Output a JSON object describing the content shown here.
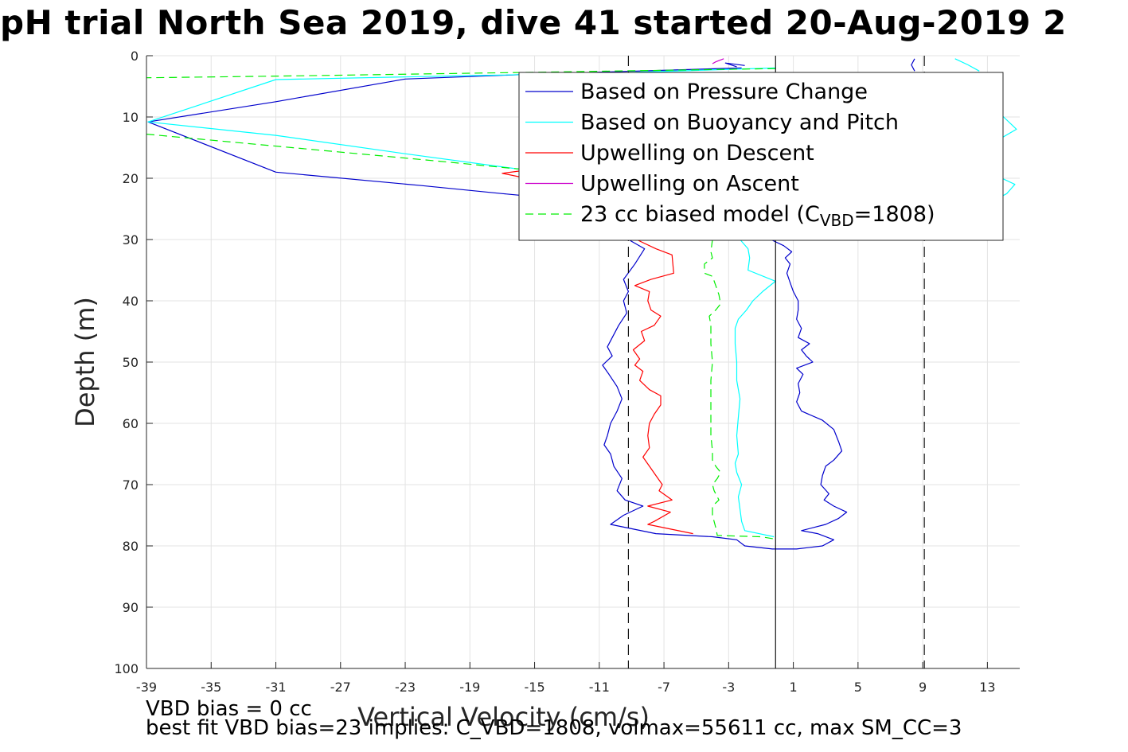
{
  "chart_data": {
    "type": "line",
    "title": "pH trial North Sea 2019, dive 41 started 20-Aug-2019 2",
    "xlabel": "Vertical Velocity (cm/s)",
    "ylabel": "Depth (m)",
    "xlim": [
      -39,
      15
    ],
    "ylim": [
      0,
      100
    ],
    "y_reversed": true,
    "grid": true,
    "legend_position": "top-right",
    "x_ticks": [
      "-39",
      "-35",
      "-31",
      "-27",
      "-23",
      "-19",
      "-15",
      "-11",
      "-7",
      "-3",
      "1",
      "5",
      "9",
      "13"
    ],
    "y_ticks": [
      "0",
      "10",
      "20",
      "30",
      "40",
      "50",
      "60",
      "70",
      "80",
      "90",
      "100"
    ],
    "reference_lines": [
      {
        "x": -9.2,
        "style": "dashed"
      },
      {
        "x": -0.1,
        "style": "solid"
      },
      {
        "x": 9.1,
        "style": "dashed"
      }
    ],
    "series": [
      {
        "name": "Based on Pressure Change",
        "color": "#0000cc",
        "segments": [
          [
            [
              -2.5,
              1.8
            ],
            [
              -3.2,
              1.2
            ],
            [
              -2.0,
              1.6
            ]
          ],
          [
            [
              -2.2,
              2.0
            ],
            [
              -15.0,
              3.0
            ],
            [
              -23.0,
              3.8
            ],
            [
              -31.0,
              7.5
            ],
            [
              -38.9,
              10.8
            ],
            [
              -31.0,
              19.0
            ],
            [
              -22.0,
              21.2
            ],
            [
              -17.0,
              22.5
            ],
            [
              -15.0,
              23.0
            ]
          ],
          [
            [
              -9.2,
              30.0
            ],
            [
              -8.2,
              31.5
            ],
            [
              -8.8,
              34.0
            ],
            [
              -9.5,
              36.5
            ],
            [
              -9.2,
              38.5
            ],
            [
              -9.5,
              40.0
            ],
            [
              -9.3,
              42.0
            ],
            [
              -9.8,
              44.0
            ],
            [
              -10.2,
              46.0
            ],
            [
              -10.5,
              47.5
            ],
            [
              -10.2,
              49.0
            ],
            [
              -10.8,
              50.5
            ],
            [
              -10.4,
              52.0
            ],
            [
              -9.9,
              54.0
            ],
            [
              -9.6,
              56.0
            ],
            [
              -9.9,
              58.0
            ],
            [
              -10.3,
              60.0
            ],
            [
              -10.5,
              62.0
            ],
            [
              -10.7,
              63.5
            ],
            [
              -10.3,
              65.0
            ],
            [
              -10.1,
              67.0
            ],
            [
              -9.6,
              69.0
            ],
            [
              -9.9,
              71.0
            ],
            [
              -9.4,
              72.5
            ],
            [
              -8.3,
              73.5
            ],
            [
              -9.5,
              75.0
            ],
            [
              -10.3,
              76.5
            ],
            [
              -7.5,
              78.0
            ],
            [
              -4.0,
              78.5
            ],
            [
              -2.5,
              79.0
            ],
            [
              -2.0,
              80.0
            ],
            [
              -0.3,
              80.5
            ],
            [
              1.2,
              80.5
            ],
            [
              2.8,
              80.0
            ],
            [
              3.5,
              79.0
            ],
            [
              2.5,
              78.0
            ],
            [
              1.5,
              77.5
            ],
            [
              3.0,
              76.5
            ],
            [
              3.8,
              75.5
            ],
            [
              4.3,
              74.5
            ],
            [
              3.5,
              73.5
            ],
            [
              2.9,
              72.5
            ],
            [
              3.2,
              71.5
            ],
            [
              2.7,
              70.0
            ],
            [
              2.8,
              68.5
            ],
            [
              3.0,
              67.0
            ],
            [
              3.5,
              66.0
            ],
            [
              4.0,
              64.5
            ],
            [
              3.8,
              63.0
            ],
            [
              3.5,
              61.0
            ],
            [
              2.8,
              59.5
            ],
            [
              1.5,
              58.0
            ],
            [
              1.2,
              56.5
            ],
            [
              1.4,
              55.0
            ],
            [
              1.3,
              53.5
            ],
            [
              1.6,
              52.0
            ],
            [
              1.2,
              51.0
            ],
            [
              2.2,
              50.0
            ],
            [
              1.8,
              49.0
            ],
            [
              1.5,
              48.0
            ],
            [
              2.0,
              47.0
            ],
            [
              1.3,
              46.0
            ],
            [
              1.5,
              44.5
            ],
            [
              1.2,
              43.0
            ],
            [
              1.3,
              41.5
            ],
            [
              1.3,
              40.0
            ],
            [
              1.0,
              38.5
            ],
            [
              0.8,
              37.0
            ],
            [
              0.6,
              35.5
            ],
            [
              0.8,
              34.0
            ],
            [
              0.5,
              33.0
            ],
            [
              0.9,
              32.0
            ],
            [
              0.4,
              31.0
            ],
            [
              -0.4,
              30.0
            ]
          ],
          [
            [
              8.5,
              0.5
            ],
            [
              8.3,
              1.5
            ],
            [
              8.5,
              2.5
            ]
          ]
        ]
      },
      {
        "name": "Based on Buoyancy and Pitch",
        "color": "#00ffff",
        "segments": [
          [
            [
              -0.1,
              2.0
            ],
            [
              -10.0,
              2.8
            ],
            [
              -20.0,
              3.3
            ],
            [
              -31.0,
              3.9
            ],
            [
              -38.9,
              10.8
            ],
            [
              -31.0,
              13.0
            ],
            [
              -23.0,
              16.0
            ],
            [
              -16.0,
              18.5
            ],
            [
              -13.0,
              19.0
            ]
          ],
          [
            [
              -2.3,
              30.0
            ],
            [
              -1.8,
              31.5
            ],
            [
              -1.7,
              33.0
            ],
            [
              -1.8,
              35.0
            ],
            [
              -0.1,
              36.8
            ],
            [
              -0.9,
              38.5
            ],
            [
              -1.5,
              40.0
            ],
            [
              -1.9,
              41.5
            ],
            [
              -2.4,
              43.0
            ],
            [
              -2.6,
              44.5
            ],
            [
              -2.6,
              47.0
            ],
            [
              -2.5,
              50.0
            ],
            [
              -2.5,
              53.0
            ],
            [
              -2.3,
              56.0
            ],
            [
              -2.4,
              59.0
            ],
            [
              -2.5,
              62.0
            ],
            [
              -2.4,
              65.0
            ],
            [
              -2.6,
              66.5
            ],
            [
              -2.5,
              68.0
            ],
            [
              -2.2,
              70.0
            ],
            [
              -2.4,
              72.0
            ],
            [
              -2.3,
              74.0
            ],
            [
              -2.2,
              76.0
            ],
            [
              -2.0,
              77.5
            ],
            [
              -0.2,
              78.5
            ]
          ],
          [
            [
              11.0,
              0.5
            ],
            [
              11.8,
              1.5
            ],
            [
              12.5,
              2.5
            ]
          ],
          [
            [
              13.0,
              6.5
            ],
            [
              13.6,
              7.0
            ],
            [
              13.5,
              8.5
            ],
            [
              14.0,
              10.0
            ],
            [
              14.8,
              12.0
            ],
            [
              13.5,
              14.0
            ]
          ],
          [
            [
              13.2,
              17.5
            ],
            [
              13.7,
              18.0
            ],
            [
              13.5,
              19.5
            ],
            [
              14.7,
              21.0
            ],
            [
              14.2,
              22.5
            ],
            [
              13.5,
              23.5
            ]
          ]
        ]
      },
      {
        "name": "Upwelling on Descent",
        "color": "#ff0000",
        "segments": [
          [
            [
              -15.0,
              18.5
            ],
            [
              -17.0,
              19.2
            ],
            [
              -15.5,
              20.0
            ]
          ],
          [
            [
              -8.7,
              30.0
            ],
            [
              -7.5,
              31.5
            ],
            [
              -6.5,
              32.5
            ],
            [
              -6.4,
              35.5
            ],
            [
              -7.8,
              36.5
            ],
            [
              -8.8,
              37.5
            ],
            [
              -7.9,
              38.5
            ],
            [
              -8.0,
              40.0
            ],
            [
              -7.8,
              41.5
            ],
            [
              -7.2,
              42.5
            ],
            [
              -7.6,
              44.0
            ],
            [
              -8.4,
              45.0
            ],
            [
              -8.2,
              46.5
            ],
            [
              -8.9,
              48.0
            ],
            [
              -8.5,
              49.5
            ],
            [
              -8.8,
              50.5
            ],
            [
              -8.3,
              51.5
            ],
            [
              -8.5,
              53.0
            ],
            [
              -7.9,
              54.5
            ],
            [
              -7.2,
              55.5
            ],
            [
              -7.2,
              57.0
            ],
            [
              -7.6,
              58.5
            ],
            [
              -7.9,
              60.0
            ],
            [
              -8.0,
              62.0
            ],
            [
              -7.9,
              64.0
            ],
            [
              -8.3,
              65.5
            ],
            [
              -7.9,
              67.0
            ],
            [
              -7.5,
              68.5
            ],
            [
              -7.1,
              70.0
            ],
            [
              -7.3,
              71.0
            ],
            [
              -6.5,
              72.5
            ],
            [
              -8.0,
              73.5
            ],
            [
              -6.6,
              74.5
            ],
            [
              -7.6,
              76.0
            ],
            [
              -8.0,
              76.5
            ],
            [
              -5.2,
              78.0
            ]
          ]
        ]
      },
      {
        "name": "Upwelling on Ascent",
        "color": "#cc00cc",
        "segments": [
          [
            [
              -3.3,
              0.5
            ],
            [
              -3.8,
              1.0
            ],
            [
              -4.0,
              1.3
            ]
          ]
        ]
      },
      {
        "name": "23 cc biased model (C",
        "name_sub": "VBD",
        "name_tail": "=1808)",
        "color": "#00ee00",
        "dashed": true,
        "segments": [
          [
            [
              -0.1,
              2.1
            ],
            [
              -15.0,
              2.7
            ],
            [
              -30.0,
              3.3
            ],
            [
              -39.0,
              3.6
            ]
          ],
          [
            [
              -39.0,
              12.8
            ],
            [
              -30.0,
              15.0
            ],
            [
              -21.0,
              17.2
            ],
            [
              -14.0,
              19.0
            ]
          ],
          [
            [
              -4.0,
              30.0
            ],
            [
              -4.1,
              32.0
            ],
            [
              -4.0,
              33.0
            ],
            [
              -4.5,
              34.0
            ],
            [
              -4.5,
              35.5
            ],
            [
              -4.0,
              36.0
            ],
            [
              -3.8,
              37.5
            ],
            [
              -3.6,
              39.0
            ],
            [
              -3.5,
              40.5
            ],
            [
              -3.8,
              41.5
            ],
            [
              -4.2,
              42.5
            ],
            [
              -4.1,
              44.0
            ],
            [
              -4.1,
              47.0
            ],
            [
              -4.0,
              50.0
            ],
            [
              -4.1,
              53.0
            ],
            [
              -4.1,
              56.0
            ],
            [
              -4.1,
              59.0
            ],
            [
              -4.1,
              62.0
            ],
            [
              -4.0,
              64.5
            ],
            [
              -4.0,
              66.0
            ],
            [
              -3.8,
              67.0
            ],
            [
              -3.5,
              68.0
            ],
            [
              -3.7,
              69.0
            ],
            [
              -4.0,
              70.0
            ],
            [
              -3.9,
              71.0
            ],
            [
              -3.6,
              72.5
            ],
            [
              -4.0,
              73.5
            ],
            [
              -4.0,
              75.0
            ],
            [
              -3.8,
              77.0
            ],
            [
              -3.7,
              78.3
            ],
            [
              -1.0,
              78.5
            ],
            [
              -0.1,
              78.9
            ]
          ]
        ]
      }
    ],
    "annotations": [
      "VBD bias = 0 cc",
      "best fit VBD bias=23 implies: C_VBD=1808, volmax=55611 cc, max SM_CC=3"
    ]
  }
}
